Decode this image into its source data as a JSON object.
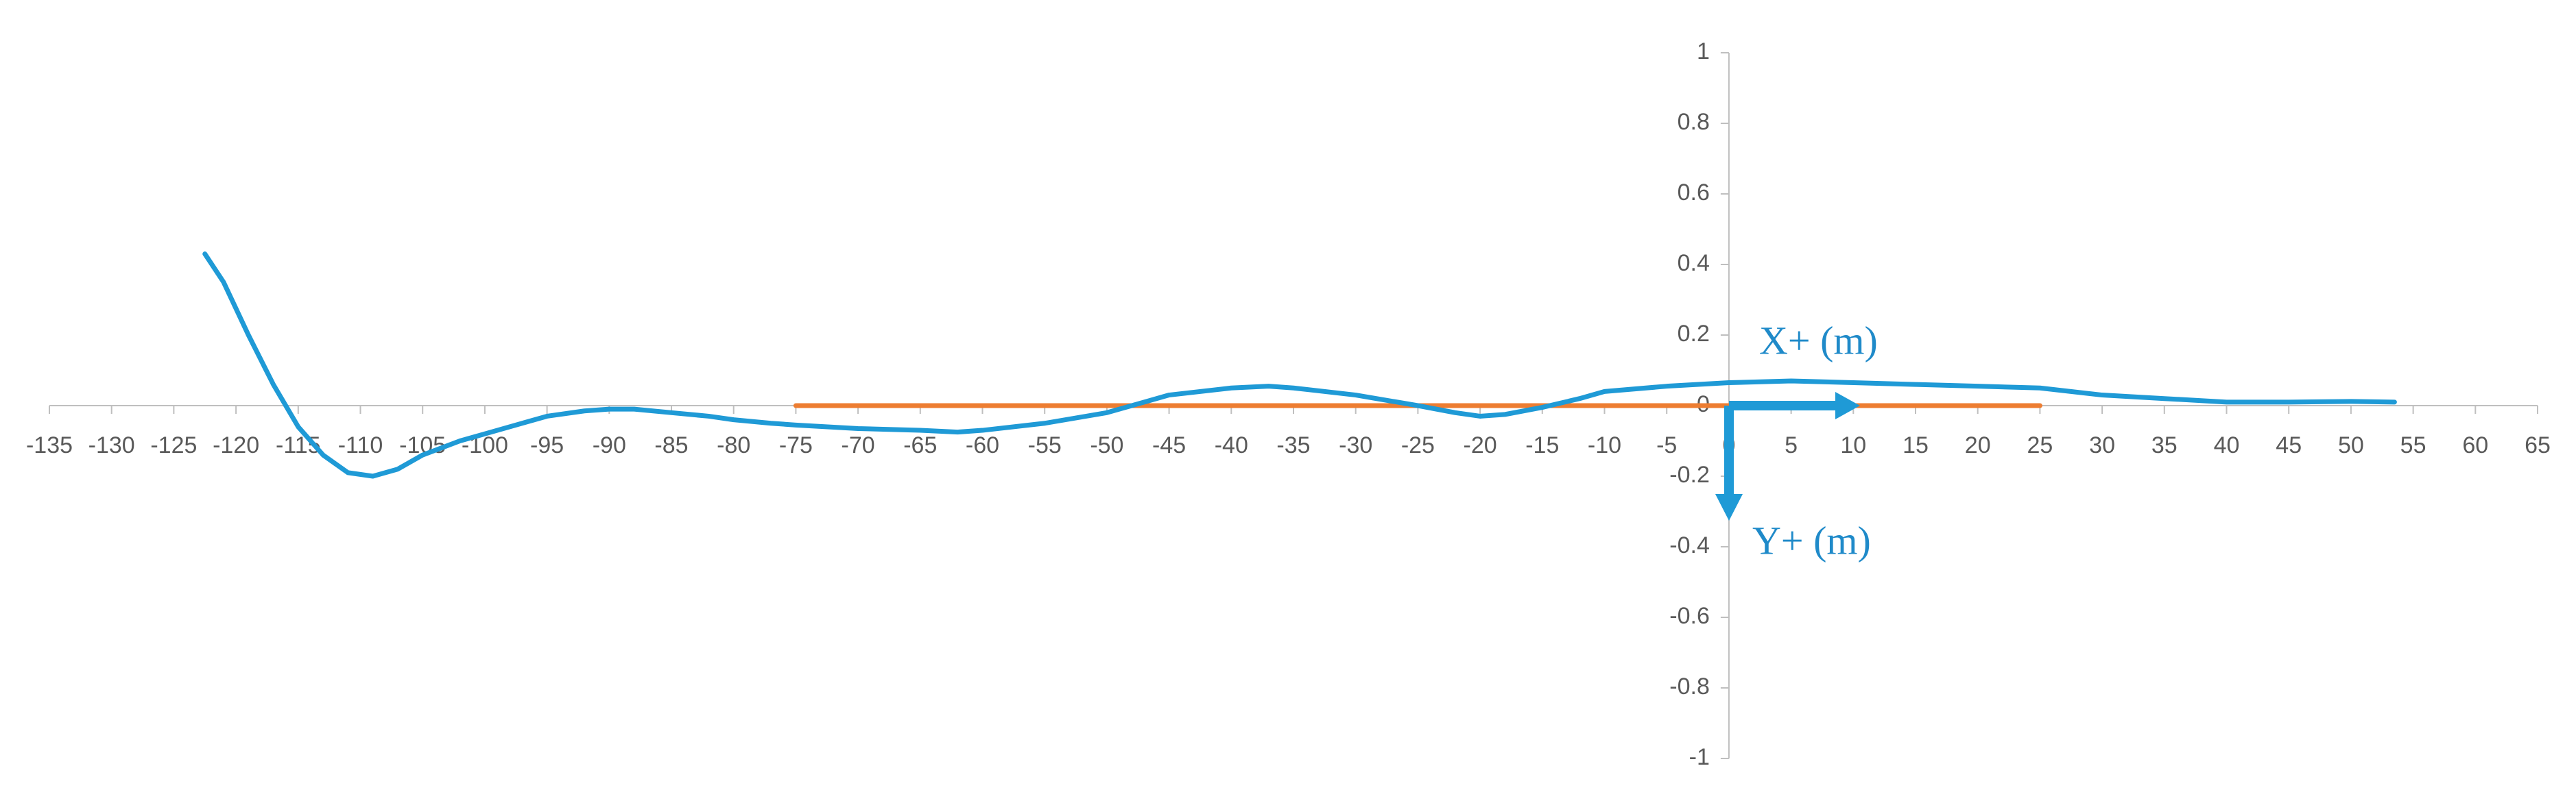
{
  "chart_data": {
    "type": "line",
    "annotations": [
      "X+ (m)",
      "Y+ (m)"
    ],
    "series": [
      {
        "color": "#1f9ad6",
        "x": [
          -122.5,
          -121,
          -119,
          -117,
          -115,
          -113,
          -111,
          -109,
          -107,
          -105,
          -102,
          -100,
          -97,
          -95,
          -92,
          -90,
          -88,
          -85,
          -82,
          -80,
          -77,
          -75,
          -70,
          -65,
          -62,
          -60,
          -55,
          -50,
          -47,
          -45,
          -40,
          -37,
          -35,
          -30,
          -25,
          -22,
          -20,
          -18,
          -15,
          -12,
          -10,
          -5,
          0,
          5,
          10,
          15,
          20,
          25,
          30,
          35,
          40,
          45,
          50,
          53.5
        ],
        "values": [
          0.43,
          0.35,
          0.2,
          0.06,
          -0.06,
          -0.14,
          -0.19,
          -0.2,
          -0.18,
          -0.14,
          -0.1,
          -0.08,
          -0.05,
          -0.03,
          -0.015,
          -0.01,
          -0.01,
          -0.02,
          -0.03,
          -0.04,
          -0.05,
          -0.055,
          -0.065,
          -0.07,
          -0.075,
          -0.07,
          -0.05,
          -0.02,
          0.01,
          0.03,
          0.05,
          0.055,
          0.05,
          0.03,
          0.0,
          -0.02,
          -0.03,
          -0.025,
          -0.005,
          0.02,
          0.04,
          0.055,
          0.065,
          0.07,
          0.065,
          0.06,
          0.055,
          0.05,
          0.03,
          0.02,
          0.01,
          0.01,
          0.012,
          0.01
        ]
      },
      {
        "color": "#ed7d31",
        "x": [
          -75,
          25
        ],
        "values": [
          0,
          0
        ]
      }
    ],
    "xlim": [
      -135,
      65
    ],
    "xticks": [
      -135,
      -130,
      -125,
      -120,
      -115,
      -110,
      -105,
      -100,
      -95,
      -90,
      -85,
      -80,
      -75,
      -70,
      -65,
      -60,
      -55,
      -50,
      -45,
      -40,
      -35,
      -30,
      -25,
      -20,
      -15,
      -10,
      -5,
      0,
      5,
      10,
      15,
      20,
      25,
      30,
      35,
      40,
      45,
      50,
      55,
      60,
      65
    ],
    "ylim": [
      -1,
      1
    ],
    "yticks": [
      -1,
      -0.8,
      -0.6,
      -0.4,
      -0.2,
      0,
      0.2,
      0.4,
      0.6,
      0.8,
      1
    ]
  }
}
